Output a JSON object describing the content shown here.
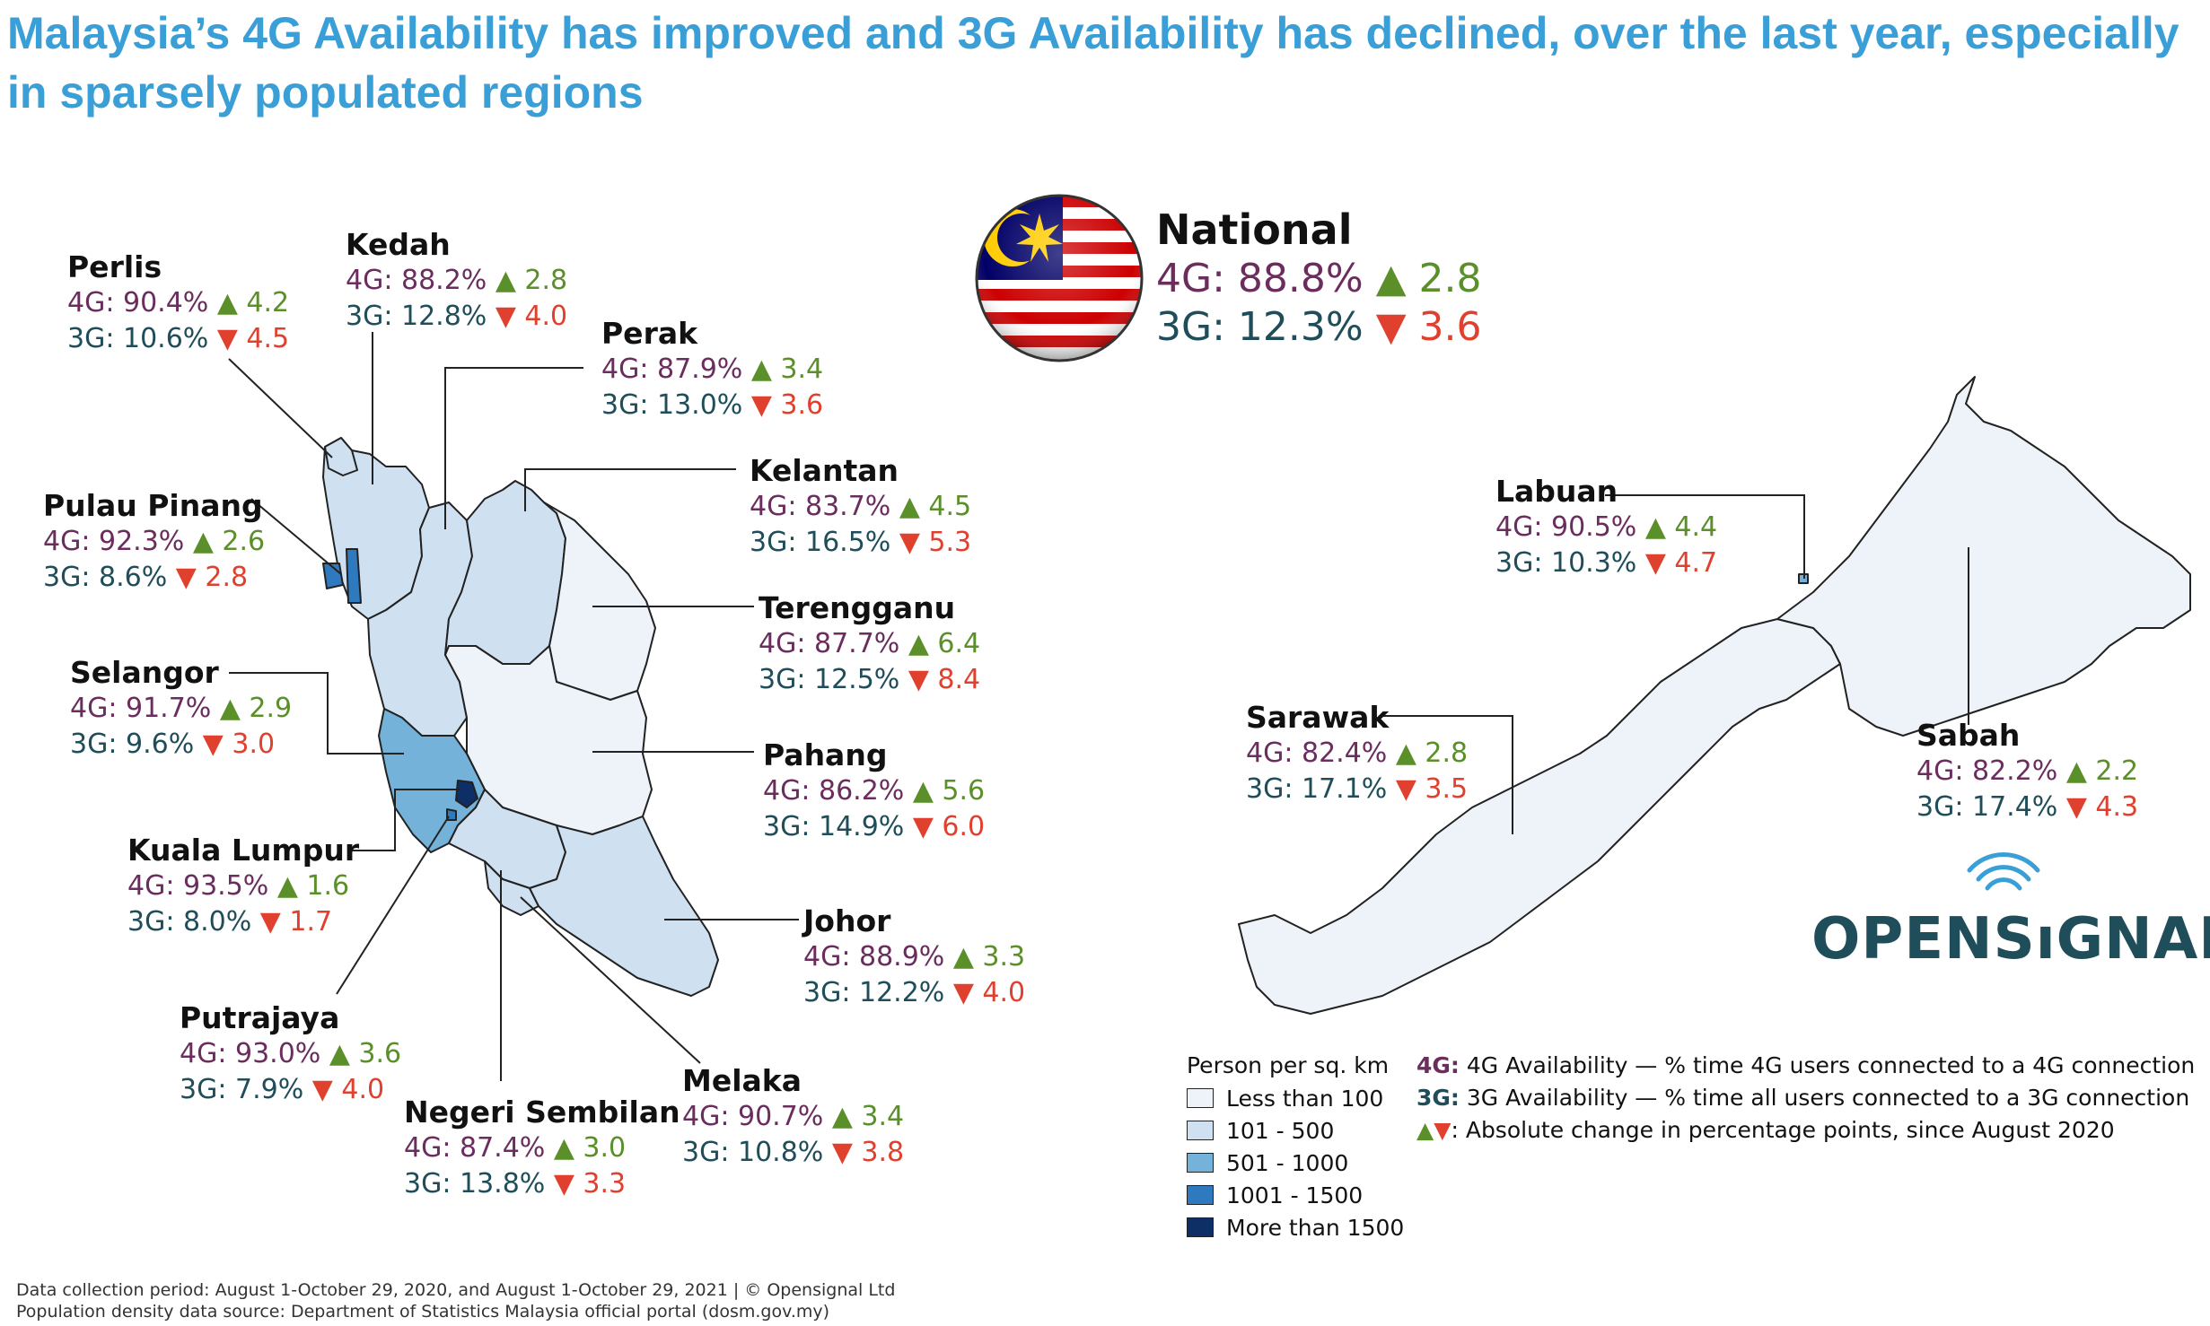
{
  "title": "Malaysia’s 4G Availability has improved and 3G Availability has declined, over the last year, especially in sparsely populated regions",
  "colors": {
    "title": "#3a9fd6",
    "fourG": "#6b2d5e",
    "threeG": "#1f4e5a",
    "increase": "#5a8f2a",
    "decrease": "#e0402e",
    "density_lt100": "#eef3fa",
    "density_101_500": "#cfe0f1",
    "density_501_1000": "#74b2da",
    "density_1001_1500": "#2f79bf",
    "density_gt1500": "#0d2f66"
  },
  "national": {
    "name": "National",
    "g4_label": "4G: 88.8%",
    "g4_change": "▲ 2.8",
    "g3_label": "3G: 12.3%",
    "g3_change": "▼ 3.6"
  },
  "regions": [
    {
      "name": "Perlis",
      "g4": "4G: 90.4%",
      "g4_change": "▲ 4.2",
      "g3": "3G: 10.6%",
      "g3_change": "▼ 4.5"
    },
    {
      "name": "Kedah",
      "g4": "4G: 88.2%",
      "g4_change": "▲ 2.8",
      "g3": "3G: 12.8%",
      "g3_change": "▼ 4.0"
    },
    {
      "name": "Perak",
      "g4": "4G: 87.9%",
      "g4_change": "▲ 3.4",
      "g3": "3G: 13.0%",
      "g3_change": "▼ 3.6"
    },
    {
      "name": "Kelantan",
      "g4": "4G: 83.7%",
      "g4_change": "▲ 4.5",
      "g3": "3G: 16.5%",
      "g3_change": "▼ 5.3"
    },
    {
      "name": "Pulau Pinang",
      "g4": "4G: 92.3%",
      "g4_change": "▲ 2.6",
      "g3": "3G: 8.6%",
      "g3_change": "▼ 2.8"
    },
    {
      "name": "Terengganu",
      "g4": "4G: 87.7%",
      "g4_change": "▲ 6.4",
      "g3": "3G: 12.5%",
      "g3_change": "▼ 8.4"
    },
    {
      "name": "Selangor",
      "g4": "4G: 91.7%",
      "g4_change": "▲ 2.9",
      "g3": "3G: 9.6%",
      "g3_change": "▼ 3.0"
    },
    {
      "name": "Pahang",
      "g4": "4G: 86.2%",
      "g4_change": "▲ 5.6",
      "g3": "3G: 14.9%",
      "g3_change": "▼ 6.0"
    },
    {
      "name": "Kuala Lumpur",
      "g4": "4G: 93.5%",
      "g4_change": "▲ 1.6",
      "g3": "3G: 8.0%",
      "g3_change": "▼ 1.7"
    },
    {
      "name": "Johor",
      "g4": "4G: 88.9%",
      "g4_change": "▲ 3.3",
      "g3": "3G: 12.2%",
      "g3_change": "▼ 4.0"
    },
    {
      "name": "Putrajaya",
      "g4": "4G: 93.0%",
      "g4_change": "▲ 3.6",
      "g3": "3G: 7.9%",
      "g3_change": "▼ 4.0"
    },
    {
      "name": "Melaka",
      "g4": "4G: 90.7%",
      "g4_change": "▲ 3.4",
      "g3": "3G: 10.8%",
      "g3_change": "▼ 3.8"
    },
    {
      "name": "Negeri Sembilan",
      "g4": "4G: 87.4%",
      "g4_change": "▲ 3.0",
      "g3": "3G: 13.8%",
      "g3_change": "▼ 3.3"
    },
    {
      "name": "Labuan",
      "g4": "4G: 90.5%",
      "g4_change": "▲ 4.4",
      "g3": "3G: 10.3%",
      "g3_change": "▼ 4.7"
    },
    {
      "name": "Sarawak",
      "g4": "4G: 82.4%",
      "g4_change": "▲ 2.8",
      "g3": "3G: 17.1%",
      "g3_change": "▼ 3.5"
    },
    {
      "name": "Sabah",
      "g4": "4G: 82.2%",
      "g4_change": "▲ 2.2",
      "g3": "3G: 17.4%",
      "g3_change": "▼ 4.3"
    }
  ],
  "legend": {
    "title": "Person per sq.  km",
    "items": [
      {
        "label": "Less than 100",
        "color": "#eef3fa"
      },
      {
        "label": "101 - 500",
        "color": "#cfe0f1"
      },
      {
        "label": "501 - 1000",
        "color": "#74b2da"
      },
      {
        "label": "1001 - 1500",
        "color": "#2f79bf"
      },
      {
        "label": "More than 1500",
        "color": "#0d2f66"
      }
    ]
  },
  "definitions": {
    "g4_key": "4G:",
    "g4_text": " 4G Availability — % time 4G users connected to a 4G connection",
    "g3_key": "3G:",
    "g3_text": " 3G Availability — % time all users connected to a 3G connection",
    "change_key": "▲▼",
    "change_text": ": Absolute change in percentage points, since August 2020"
  },
  "logo": {
    "text_a": "OPENS",
    "text_b": "ı",
    "text_c": "GNAL"
  },
  "footer": {
    "line1": "Data collection period: August 1-October 29, 2020, and August 1-October 29, 2021 | © Opensignal Ltd",
    "line2": "Population density data source: Department of Statistics Malaysia official portal (dosm.gov.my)"
  }
}
